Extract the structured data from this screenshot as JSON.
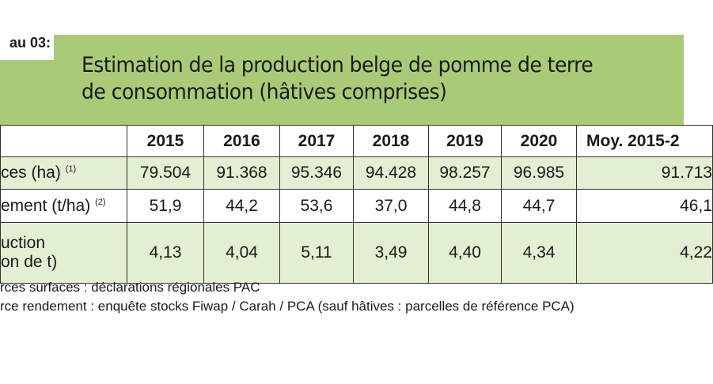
{
  "table_label": "au 03:",
  "title": {
    "line1": "Estimation de la production belge de pomme de terre",
    "line2": "de consommation (hâtives comprises)"
  },
  "columns": [
    "2015",
    "2016",
    "2017",
    "2018",
    "2019",
    "2020",
    "Moy. 2015-2"
  ],
  "rows": [
    {
      "label": "ces (ha)",
      "note": "(1)",
      "values": [
        "79.504",
        "91.368",
        "95.346",
        "94.428",
        "98.257",
        "96.985",
        "91.713"
      ]
    },
    {
      "label": "ement (t/ha)",
      "note": "(2)",
      "values": [
        "51,9",
        "44,2",
        "53,6",
        "37,0",
        "44,8",
        "44,7",
        "46,1"
      ]
    },
    {
      "label_line1": "uction",
      "label_line2": "on de t)",
      "values": [
        "4,13",
        "4,04",
        "5,11",
        "3,49",
        "4,40",
        "4,34",
        "4,22"
      ]
    }
  ],
  "notes": [
    "rces surfaces : déclarations régionales PAC",
    "rce rendement : enquête stocks Fiwap / Carah / PCA (sauf hâtives : parcelles de référence PCA)"
  ]
}
